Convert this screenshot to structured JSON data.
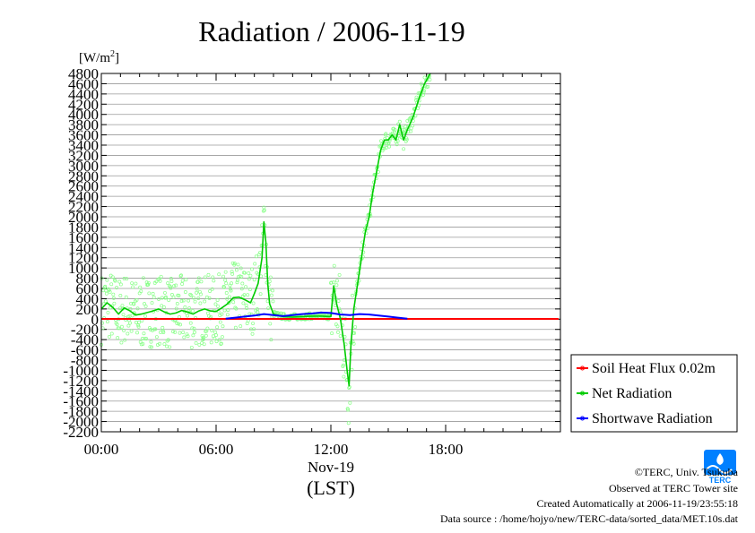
{
  "chart_data": {
    "type": "line",
    "title": "Radiation / 2006-11-19",
    "ylabel_prefix": "[W/m",
    "ylabel_sup": "2",
    "ylabel_suffix": "]",
    "xlabel_date": "Nov-19",
    "xlabel_zone": "(LST)",
    "ylim": [
      -2200,
      4800
    ],
    "xlim_hours": [
      0,
      24
    ],
    "y_tick_step": 200,
    "x_ticks": [
      {
        "h": 0,
        "label": "00:00"
      },
      {
        "h": 6,
        "label": "06:00"
      },
      {
        "h": 12,
        "label": "12:00"
      },
      {
        "h": 18,
        "label": "18:00"
      }
    ],
    "grid": "horizontal",
    "legend_position": "right",
    "series": [
      {
        "name": "Soil Heat Flux 0.02m",
        "color": "#ff0000",
        "points": [
          [
            0,
            5
          ],
          [
            2,
            5
          ],
          [
            4,
            5
          ],
          [
            6,
            5
          ],
          [
            8,
            5
          ],
          [
            10,
            5
          ],
          [
            12,
            5
          ],
          [
            14,
            5
          ],
          [
            16,
            5
          ],
          [
            18,
            5
          ],
          [
            20,
            5
          ],
          [
            22,
            5
          ],
          [
            23.9,
            5
          ]
        ]
      },
      {
        "name": "Net Radiation",
        "color": "#00cc00",
        "scatter_color": "#88ff88",
        "points": [
          [
            0.0,
            200
          ],
          [
            0.3,
            320
          ],
          [
            0.6,
            230
          ],
          [
            0.9,
            100
          ],
          [
            1.2,
            220
          ],
          [
            1.5,
            160
          ],
          [
            1.8,
            80
          ],
          [
            2.1,
            100
          ],
          [
            2.4,
            130
          ],
          [
            2.7,
            160
          ],
          [
            3.0,
            200
          ],
          [
            3.3,
            140
          ],
          [
            3.6,
            100
          ],
          [
            3.9,
            120
          ],
          [
            4.2,
            170
          ],
          [
            4.5,
            140
          ],
          [
            4.8,
            100
          ],
          [
            5.1,
            160
          ],
          [
            5.4,
            200
          ],
          [
            5.7,
            160
          ],
          [
            6.0,
            150
          ],
          [
            6.3,
            220
          ],
          [
            6.6,
            300
          ],
          [
            6.9,
            420
          ],
          [
            7.2,
            430
          ],
          [
            7.5,
            380
          ],
          [
            7.8,
            320
          ],
          [
            8.0,
            500
          ],
          [
            8.2,
            700
          ],
          [
            8.4,
            1200
          ],
          [
            8.5,
            1900
          ],
          [
            8.6,
            1500
          ],
          [
            8.7,
            700
          ],
          [
            8.8,
            300
          ],
          [
            9.0,
            100
          ],
          [
            9.5,
            50
          ],
          [
            10.0,
            40
          ],
          [
            10.5,
            50
          ],
          [
            11.0,
            60
          ],
          [
            11.5,
            60
          ],
          [
            12.0,
            50
          ],
          [
            12.15,
            650
          ],
          [
            12.3,
            300
          ],
          [
            12.5,
            0
          ],
          [
            12.7,
            -500
          ],
          [
            12.85,
            -1000
          ],
          [
            12.95,
            -1300
          ],
          [
            13.05,
            -500
          ],
          [
            13.2,
            200
          ],
          [
            13.4,
            700
          ],
          [
            13.6,
            1200
          ],
          [
            13.8,
            1700
          ],
          [
            14.0,
            2000
          ],
          [
            14.2,
            2500
          ],
          [
            14.4,
            2900
          ],
          [
            14.6,
            3300
          ],
          [
            14.8,
            3500
          ],
          [
            15.0,
            3500
          ],
          [
            15.2,
            3600
          ],
          [
            15.4,
            3500
          ],
          [
            15.6,
            3800
          ],
          [
            15.8,
            3500
          ],
          [
            16.0,
            3700
          ],
          [
            16.3,
            3950
          ],
          [
            16.6,
            4300
          ],
          [
            16.9,
            4600
          ],
          [
            17.2,
            4800
          ]
        ]
      },
      {
        "name": "Shortwave Radiation",
        "color": "#0000ff",
        "points": [
          [
            6.5,
            10
          ],
          [
            7.0,
            30
          ],
          [
            7.5,
            50
          ],
          [
            8.0,
            70
          ],
          [
            8.5,
            100
          ],
          [
            9.0,
            80
          ],
          [
            9.5,
            60
          ],
          [
            10.0,
            80
          ],
          [
            10.5,
            100
          ],
          [
            11.0,
            110
          ],
          [
            11.5,
            130
          ],
          [
            12.0,
            120
          ],
          [
            12.5,
            90
          ],
          [
            13.0,
            80
          ],
          [
            13.5,
            100
          ],
          [
            14.0,
            90
          ],
          [
            14.5,
            70
          ],
          [
            15.0,
            50
          ],
          [
            15.5,
            30
          ],
          [
            16.0,
            10
          ]
        ]
      }
    ]
  },
  "footer": {
    "copyright": "©TERC, Univ. Tsukuba",
    "observed": "Observed at TERC Tower site",
    "created": "Created Automatically at 2006-11-19/23:55:18",
    "source": "Data source : /home/hojyo/new/TERC-data/sorted_data/MET.10s.dat"
  },
  "logo": {
    "text": "TERC",
    "icon": "terc-wave-logo",
    "color": "#0080ff"
  }
}
